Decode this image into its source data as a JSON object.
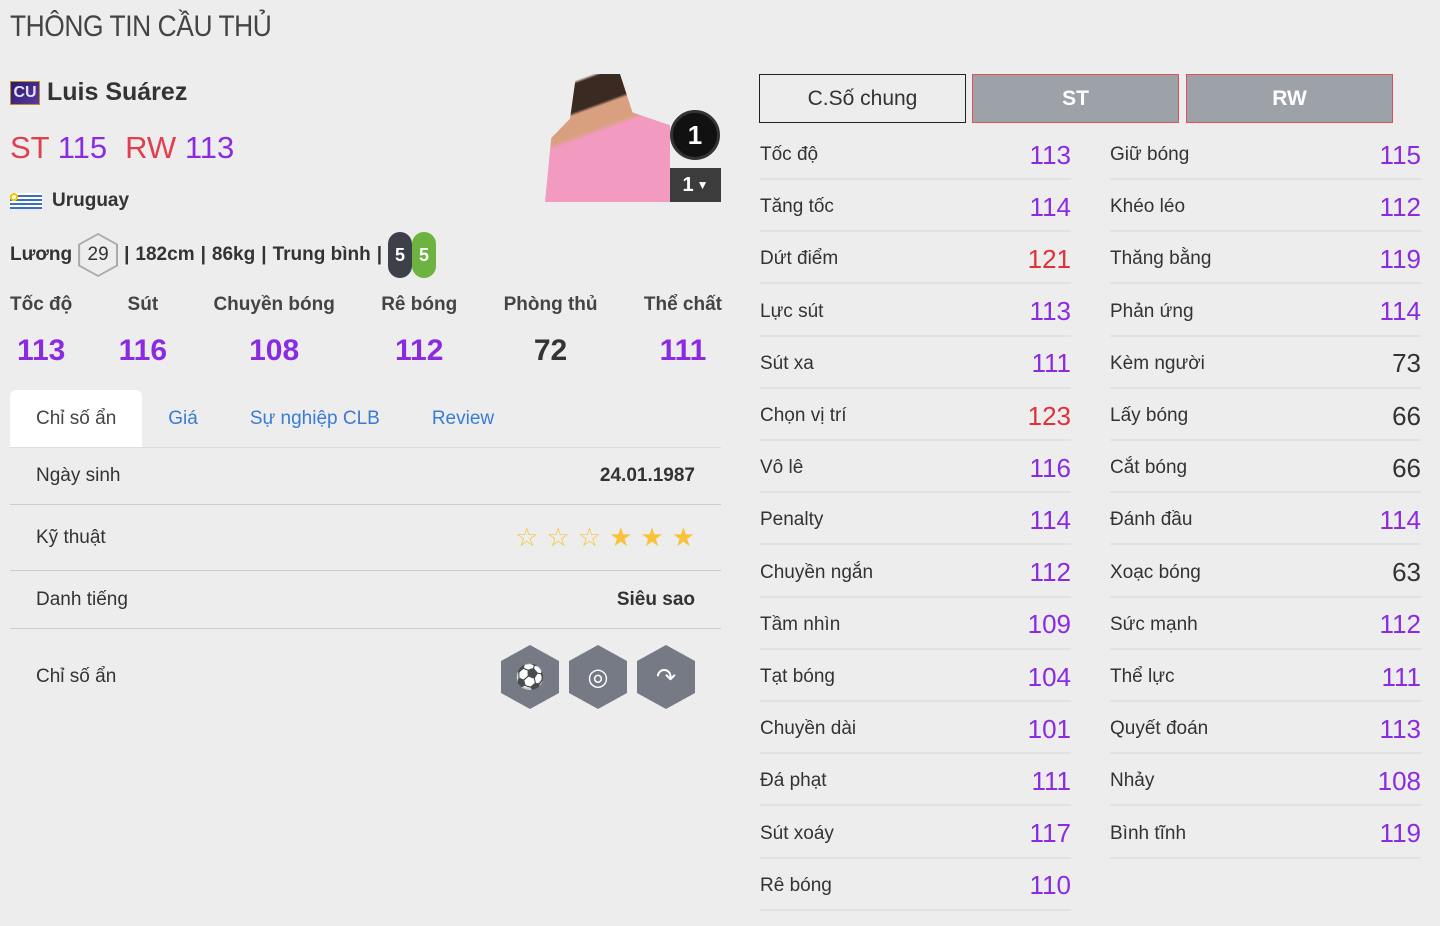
{
  "page_title": "THÔNG TIN CẦU THỦ",
  "player": {
    "season_badge": "CU",
    "name": "Luis Suárez",
    "positions": [
      {
        "pos": "ST",
        "ovr": "115"
      },
      {
        "pos": "RW",
        "ovr": "113"
      }
    ],
    "nation": "Uruguay",
    "salary_label": "Lương",
    "salary": "29",
    "height": "182cm",
    "weight": "86kg",
    "body_type": "Trung bình",
    "left_foot": "5",
    "right_foot": "5",
    "rank": "1",
    "level": "1"
  },
  "summary": [
    {
      "label": "Tốc độ",
      "value": "113"
    },
    {
      "label": "Sút",
      "value": "116"
    },
    {
      "label": "Chuyền bóng",
      "value": "108"
    },
    {
      "label": "Rê bóng",
      "value": "112"
    },
    {
      "label": "Phòng thủ",
      "value": "72"
    },
    {
      "label": "Thể chất",
      "value": "111"
    }
  ],
  "tabs": [
    "Chỉ số ẩn",
    "Giá",
    "Sự nghiệp CLB",
    "Review"
  ],
  "details": {
    "birth_label": "Ngày sinh",
    "birth": "24.01.1987",
    "skill_label": "Kỹ thuật",
    "skill_stars": 3,
    "skill_max": 6,
    "rep_label": "Danh tiếng",
    "rep": "Siêu sao",
    "hidden_label": "Chỉ số ẩn",
    "hidden_traits": [
      "finesse-shot-icon",
      "dribbler-icon",
      "outside-curl-icon"
    ]
  },
  "stat_tabs": [
    "C.Số chung",
    "ST",
    "RW"
  ],
  "colors": {
    "purple": "#8a2be2",
    "red": "#e0303a",
    "dark": "#333333"
  },
  "stats_left": [
    [
      "Tốc độ",
      "113",
      "purple"
    ],
    [
      "Tăng tốc",
      "114",
      "purple"
    ],
    [
      "Dứt điểm",
      "121",
      "red"
    ],
    [
      "Lực sút",
      "113",
      "purple"
    ],
    [
      "Sút xa",
      "111",
      "purple"
    ],
    [
      "Chọn vị trí",
      "123",
      "red"
    ],
    [
      "Vô lê",
      "116",
      "purple"
    ],
    [
      "Penalty",
      "114",
      "purple"
    ],
    [
      "Chuyền ngắn",
      "112",
      "purple"
    ],
    [
      "Tầm nhìn",
      "109",
      "purple"
    ],
    [
      "Tạt bóng",
      "104",
      "purple"
    ],
    [
      "Chuyền dài",
      "101",
      "purple"
    ],
    [
      "Đá phạt",
      "111",
      "purple"
    ],
    [
      "Sút xoáy",
      "117",
      "purple"
    ],
    [
      "Rê bóng",
      "110",
      "purple"
    ]
  ],
  "stats_right": [
    [
      "Giữ bóng",
      "115",
      "purple"
    ],
    [
      "Khéo léo",
      "112",
      "purple"
    ],
    [
      "Thăng bằng",
      "119",
      "purple"
    ],
    [
      "Phản ứng",
      "114",
      "purple"
    ],
    [
      "Kèm người",
      "73",
      "dark"
    ],
    [
      "Lấy bóng",
      "66",
      "dark"
    ],
    [
      "Cắt bóng",
      "66",
      "dark"
    ],
    [
      "Đánh đầu",
      "114",
      "purple"
    ],
    [
      "Xoạc bóng",
      "63",
      "dark"
    ],
    [
      "Sức mạnh",
      "112",
      "purple"
    ],
    [
      "Thể lực",
      "111",
      "purple"
    ],
    [
      "Quyết đoán",
      "113",
      "purple"
    ],
    [
      "Nhảy",
      "108",
      "purple"
    ],
    [
      "Bình tĩnh",
      "119",
      "purple"
    ]
  ]
}
